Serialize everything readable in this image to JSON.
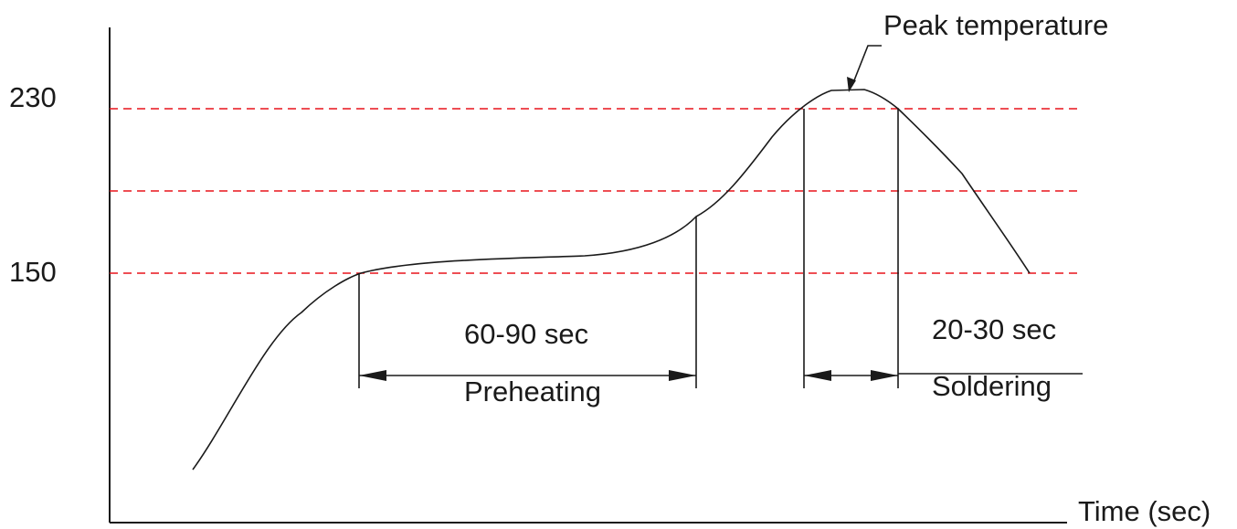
{
  "y_labels": {
    "upper": "230",
    "lower": "150"
  },
  "x_axis_label": "Time (sec)",
  "annotations": {
    "peak": "Peak temperature",
    "preheat_duration": "60-90 sec",
    "preheat_name": "Preheating",
    "solder_duration": "20-30 sec",
    "solder_name": "Soldering"
  },
  "colors": {
    "guide_lines": "#e8141c",
    "ink": "#1a1a1a"
  }
}
